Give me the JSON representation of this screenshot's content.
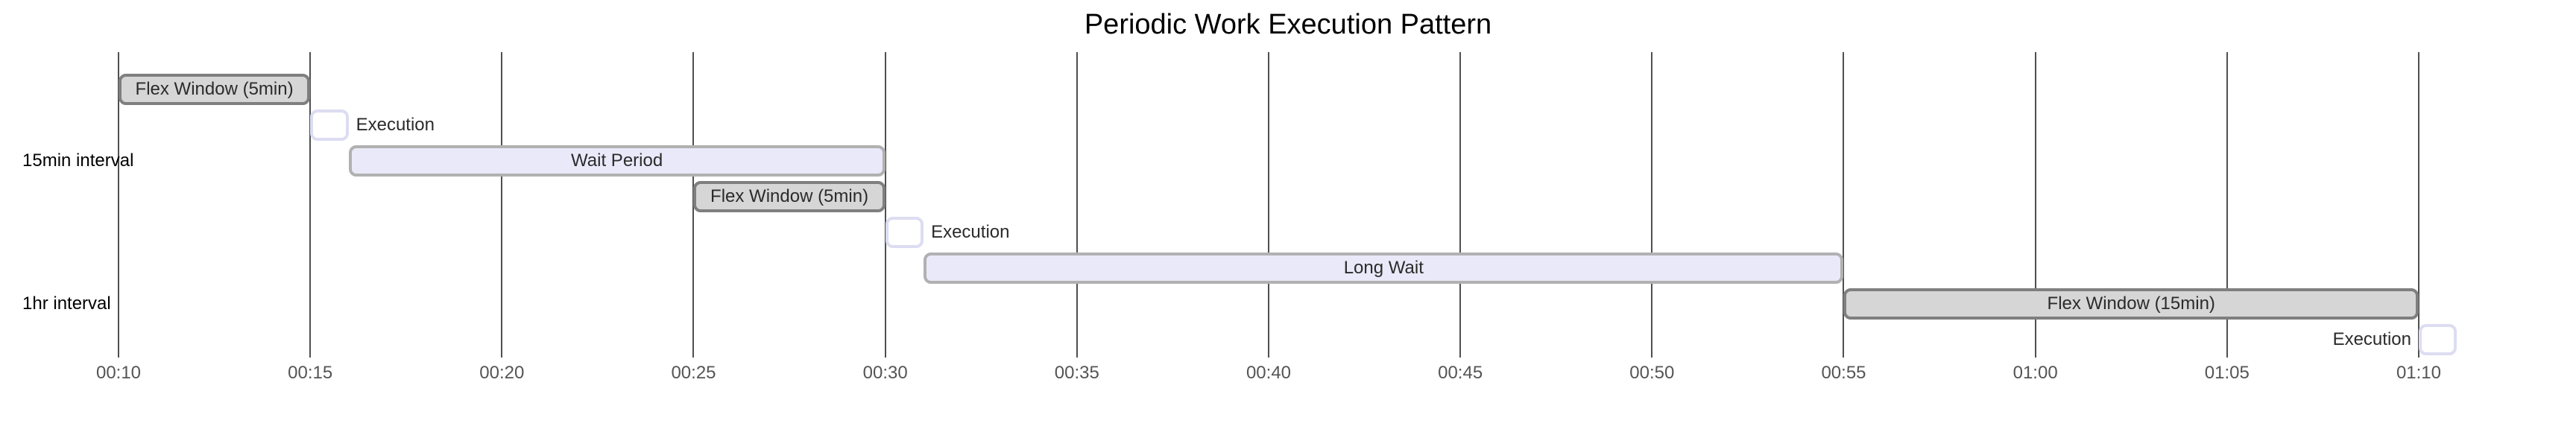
{
  "chart_data": {
    "type": "gantt",
    "title": "Periodic Work Execution Pattern",
    "x_axis": {
      "start_min": 10,
      "end_min": 70,
      "tick_step_min": 5,
      "grid": true,
      "tick_labels": [
        "00:10",
        "00:15",
        "00:20",
        "00:25",
        "00:30",
        "00:35",
        "00:40",
        "00:45",
        "00:50",
        "00:55",
        "01:00",
        "01:05",
        "01:10"
      ]
    },
    "row_labels": [
      {
        "text": "15min interval",
        "row": 3
      },
      {
        "text": "1hr interval",
        "row": 7
      }
    ],
    "tasks": [
      {
        "label": "Flex Window (5min)",
        "start": "00:10",
        "end": "00:15",
        "row": 1,
        "kind": "flex",
        "label_pos": "inside"
      },
      {
        "label": "Execution",
        "start": "00:15",
        "end": "00:16",
        "row": 2,
        "kind": "execution",
        "label_pos": "right"
      },
      {
        "label": "Wait Period",
        "start": "00:16",
        "end": "00:30",
        "row": 3,
        "kind": "wait",
        "label_pos": "inside"
      },
      {
        "label": "Flex Window (5min)",
        "start": "00:25",
        "end": "00:30",
        "row": 4,
        "kind": "flex",
        "label_pos": "inside"
      },
      {
        "label": "Execution",
        "start": "00:30",
        "end": "00:31",
        "row": 5,
        "kind": "execution",
        "label_pos": "right"
      },
      {
        "label": "Long Wait",
        "start": "00:31",
        "end": "00:55",
        "row": 6,
        "kind": "wait",
        "label_pos": "inside"
      },
      {
        "label": "Flex Window (15min)",
        "start": "00:55",
        "end": "01:10",
        "row": 7,
        "kind": "flex",
        "label_pos": "inside"
      },
      {
        "label": "Execution",
        "start": "01:10",
        "end": "01:11",
        "row": 8,
        "kind": "execution",
        "label_pos": "left"
      }
    ],
    "colors": {
      "background": "#ffffff",
      "grid_line": "#4f4f4f",
      "tick_text": "#555555",
      "row_label_text": "#000000",
      "bar_text": "#2b2b2b",
      "flex_fill": "#d6d6d6",
      "flex_border": "#7f7f7f",
      "wait_fill": "#e9e9f9",
      "wait_border": "#b1b1b1",
      "execution_fill": "#ffffff",
      "execution_border": "#dcdcf2"
    }
  }
}
